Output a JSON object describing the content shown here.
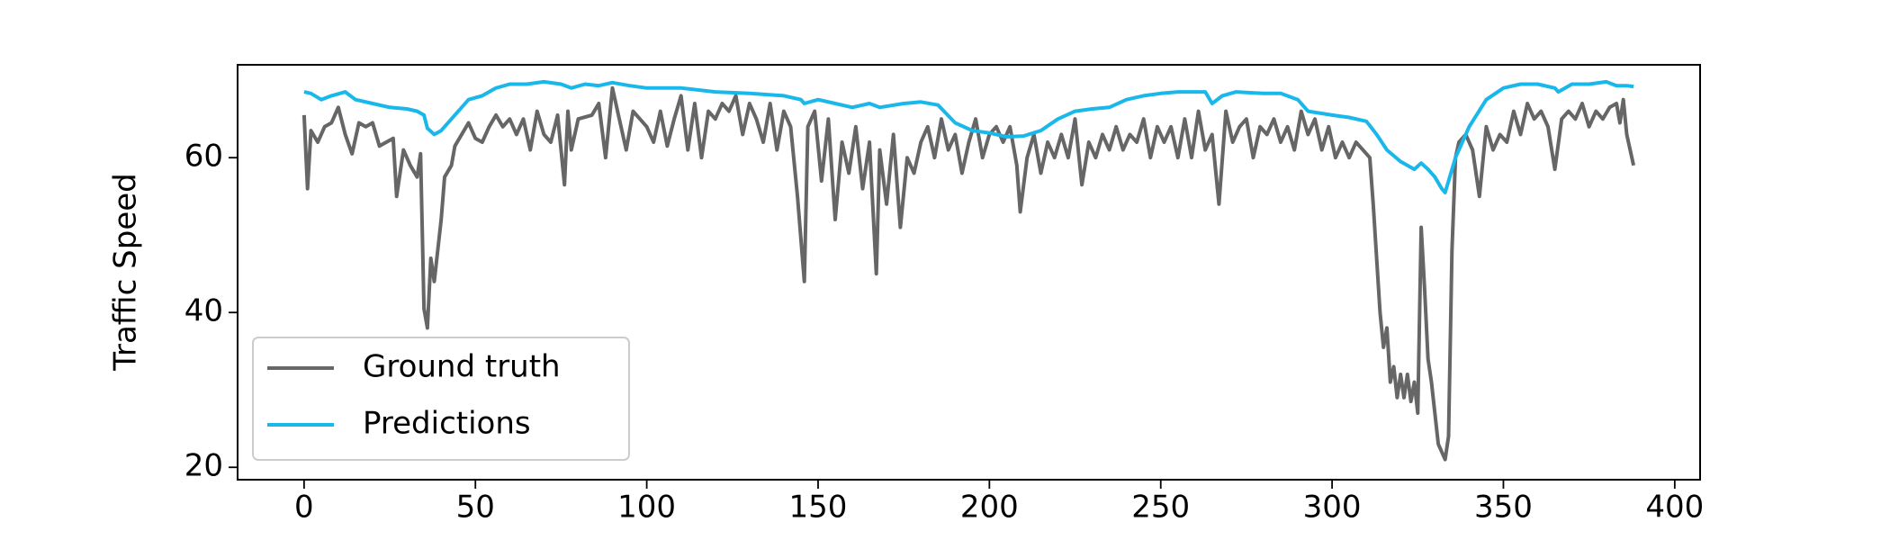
{
  "chart_data": {
    "type": "line",
    "ylabel": "Traffic Speed",
    "xlim": [
      -19.4,
      407.4
    ],
    "ylim": [
      18.4,
      72
    ],
    "xticks": [
      0,
      50,
      100,
      150,
      200,
      250,
      300,
      350,
      400
    ],
    "yticks": [
      20,
      40,
      60
    ],
    "legend": "lower left",
    "series": [
      {
        "name": "Ground truth",
        "color": "#666666",
        "x": [
          0,
          1,
          2,
          4,
          6,
          8,
          10,
          12,
          14,
          16,
          18,
          20,
          22,
          24,
          26,
          27,
          29,
          31,
          33,
          34,
          35,
          36,
          37,
          38,
          40,
          41,
          43,
          44,
          46,
          48,
          50,
          52,
          54,
          56,
          58,
          60,
          62,
          64,
          66,
          68,
          70,
          72,
          74,
          76,
          77,
          78,
          80,
          84,
          86,
          88,
          90,
          92,
          94,
          96,
          98,
          100,
          102,
          104,
          106,
          108,
          110,
          112,
          114,
          116,
          118,
          120,
          122,
          124,
          126,
          128,
          130,
          132,
          134,
          136,
          138,
          140,
          142,
          144,
          146,
          147,
          149,
          151,
          153,
          155,
          157,
          159,
          161,
          163,
          165,
          167,
          168,
          170,
          172,
          174,
          176,
          178,
          180,
          182,
          184,
          186,
          188,
          190,
          192,
          194,
          196,
          198,
          200,
          202,
          204,
          206,
          208,
          209,
          211,
          213,
          215,
          217,
          219,
          221,
          223,
          225,
          227,
          229,
          231,
          233,
          235,
          237,
          239,
          241,
          243,
          245,
          247,
          249,
          251,
          253,
          255,
          257,
          259,
          261,
          263,
          265,
          267,
          269,
          271,
          273,
          275,
          277,
          279,
          281,
          283,
          285,
          287,
          289,
          291,
          293,
          295,
          297,
          299,
          301,
          303,
          305,
          307,
          309,
          311,
          312,
          314,
          315,
          316,
          317,
          318,
          319,
          320,
          321,
          322,
          323,
          324,
          325,
          326,
          327,
          328,
          329,
          330,
          331,
          332,
          333,
          334,
          335,
          336,
          337,
          339,
          341,
          343,
          345,
          347,
          349,
          351,
          353,
          355,
          357,
          359,
          361,
          363,
          365,
          367,
          369,
          371,
          373,
          375,
          377,
          379,
          381,
          383,
          384,
          385,
          386,
          388
        ],
        "values": [
          65.5,
          56,
          63.5,
          62,
          64,
          64.5,
          66.5,
          63,
          60.5,
          64.5,
          64,
          64.5,
          61.5,
          62,
          62.5,
          55,
          61,
          59,
          57.5,
          60.5,
          40.5,
          38,
          47,
          44,
          52,
          57.5,
          59,
          61.5,
          63,
          64.5,
          62.5,
          62,
          64,
          65.5,
          64,
          65,
          63,
          65,
          61,
          66,
          63,
          62,
          65.5,
          56.5,
          66,
          61,
          65,
          65.5,
          67,
          60,
          69,
          65,
          61,
          66,
          65,
          64,
          62,
          66,
          61.5,
          65,
          68,
          61,
          67,
          60,
          66,
          65,
          67,
          66,
          68,
          63,
          67,
          65,
          62,
          67,
          61,
          66,
          64,
          55,
          44,
          64,
          66,
          57,
          65,
          52,
          62,
          58,
          64,
          56,
          62,
          45,
          61,
          54,
          63,
          51,
          60,
          58,
          62,
          64,
          60,
          65,
          61,
          63,
          58,
          62,
          65,
          60,
          63,
          64,
          62,
          64,
          59,
          53,
          60,
          63,
          58,
          62,
          60,
          63,
          60,
          65,
          56.5,
          62,
          60,
          63,
          61,
          64,
          61,
          63,
          62,
          65,
          60,
          64,
          62,
          64,
          60,
          65,
          60,
          66,
          61,
          63,
          54,
          66,
          62,
          64,
          65,
          60,
          64,
          63,
          65,
          62,
          64,
          61,
          66,
          63,
          65,
          61,
          64,
          60,
          62,
          60,
          62,
          61,
          60,
          54,
          40,
          35.5,
          38,
          31,
          33,
          29,
          32,
          29,
          32,
          28.5,
          31,
          27,
          51,
          43,
          34,
          31,
          27,
          23,
          22,
          21,
          24,
          48,
          60,
          62,
          63,
          61,
          55,
          64,
          61,
          63,
          62,
          66,
          63,
          67,
          65,
          66,
          64,
          58.5,
          65,
          66,
          65,
          67,
          64,
          66,
          65,
          66.5,
          67,
          64.5,
          67.5,
          63,
          59
        ]
      },
      {
        "name": "Predictions",
        "color": "#1ab8ea",
        "x": [
          0,
          2,
          5,
          8,
          12,
          15,
          20,
          25,
          30,
          33,
          35,
          36,
          38,
          40,
          45,
          48,
          52,
          56,
          60,
          65,
          70,
          75,
          78,
          82,
          86,
          90,
          95,
          100,
          110,
          120,
          130,
          140,
          145,
          146,
          150,
          155,
          160,
          165,
          168,
          175,
          180,
          185,
          190,
          195,
          200,
          205,
          210,
          215,
          220,
          225,
          230,
          235,
          240,
          245,
          250,
          255,
          260,
          263,
          265,
          268,
          272,
          280,
          285,
          290,
          293,
          300,
          305,
          310,
          313,
          316,
          320,
          324,
          326,
          328,
          330,
          332,
          333,
          336,
          340,
          345,
          350,
          355,
          360,
          365,
          366,
          370,
          375,
          380,
          383,
          386,
          388
        ],
        "values": [
          68.5,
          68.3,
          67.5,
          68,
          68.5,
          67.5,
          67,
          66.5,
          66.3,
          66,
          65.5,
          63.8,
          63,
          63.5,
          66,
          67.5,
          68,
          69,
          69.5,
          69.5,
          69.8,
          69.5,
          69,
          69.5,
          69.3,
          69.7,
          69.3,
          69,
          69,
          68.5,
          68.3,
          68,
          67.5,
          67,
          67.5,
          67,
          66.5,
          67,
          66.5,
          67,
          67.2,
          66.8,
          64.5,
          63.5,
          63.2,
          62.7,
          62.8,
          63.5,
          65,
          66,
          66.3,
          66.5,
          67.5,
          68,
          68.3,
          68.5,
          68.5,
          68.5,
          67,
          68,
          68.5,
          68.3,
          68.3,
          67.5,
          66,
          65.5,
          65.2,
          64.7,
          63,
          61,
          59.5,
          58.5,
          59.3,
          58.5,
          57.5,
          56,
          55.5,
          60,
          64,
          67.5,
          69,
          69.5,
          69.5,
          69,
          68.5,
          69.5,
          69.5,
          69.8,
          69.3,
          69.3,
          69.2
        ]
      }
    ]
  }
}
